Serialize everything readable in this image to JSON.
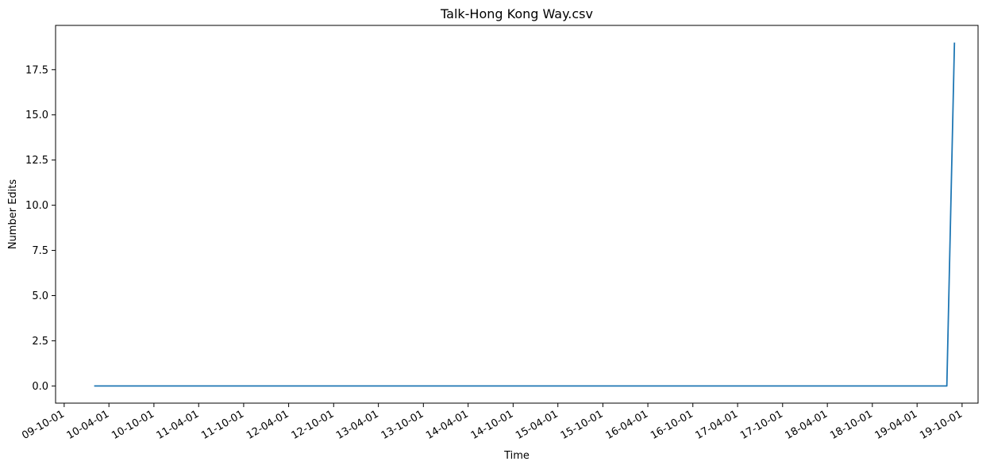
{
  "chart_data": {
    "type": "line",
    "title": "Talk-Hong Kong Way.csv",
    "xlabel": "Time",
    "ylabel": "Number Edits",
    "xlim": [
      "2009-08-27",
      "2019-12-05"
    ],
    "ylim": [
      -0.95,
      19.95
    ],
    "x_ticks": [
      "2009-10-01",
      "2010-04-01",
      "2010-10-01",
      "2011-04-01",
      "2011-10-01",
      "2012-04-01",
      "2012-10-01",
      "2013-04-01",
      "2013-10-01",
      "2014-04-01",
      "2014-10-01",
      "2015-04-01",
      "2015-10-01",
      "2016-04-01",
      "2016-10-01",
      "2017-04-01",
      "2017-10-01",
      "2018-04-01",
      "2018-10-01",
      "2019-04-01",
      "2019-10-01"
    ],
    "x_tick_labels": [
      "09-10-01",
      "10-04-01",
      "10-10-01",
      "11-04-01",
      "11-10-01",
      "12-04-01",
      "12-10-01",
      "13-04-01",
      "13-10-01",
      "14-04-01",
      "14-10-01",
      "15-04-01",
      "15-10-01",
      "16-04-01",
      "16-10-01",
      "17-04-01",
      "17-10-01",
      "18-04-01",
      "18-10-01",
      "19-04-01",
      "19-10-01"
    ],
    "y_ticks": [
      0.0,
      2.5,
      5.0,
      7.5,
      10.0,
      12.5,
      15.0,
      17.5
    ],
    "y_tick_labels": [
      "0.0",
      "2.5",
      "5.0",
      "7.5",
      "10.0",
      "12.5",
      "15.0",
      "17.5"
    ],
    "grid": false,
    "series": [
      {
        "color": "#1f77b4",
        "x": [
          "2010-01-31",
          "2019-07-31",
          "2019-08-31"
        ],
        "y": [
          0,
          0,
          19
        ]
      }
    ]
  }
}
